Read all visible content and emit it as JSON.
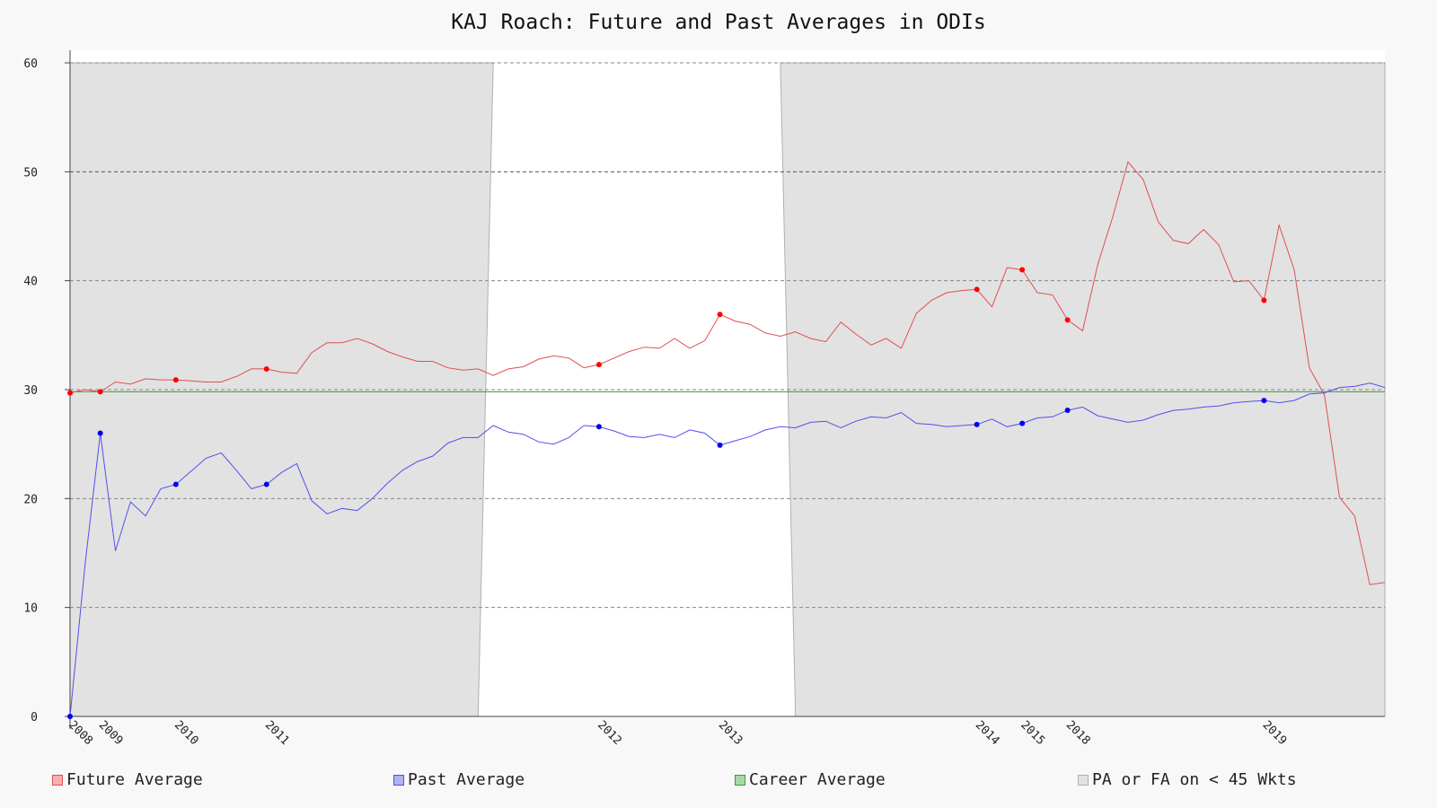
{
  "chart_data": {
    "type": "line",
    "title": "KAJ Roach: Future and Past Averages in ODIs",
    "ylim": [
      0,
      60
    ],
    "yticks": [
      0,
      10,
      20,
      30,
      40,
      50,
      60
    ],
    "grid": true,
    "legend_position": "bottom",
    "x_count": 88,
    "xtick_labels": [
      {
        "index": 0,
        "label": "2008"
      },
      {
        "index": 2,
        "label": "2009"
      },
      {
        "index": 7,
        "label": "2010"
      },
      {
        "index": 13,
        "label": "2011"
      },
      {
        "index": 35,
        "label": "2012"
      },
      {
        "index": 43,
        "label": "2013"
      },
      {
        "index": 60,
        "label": "2014"
      },
      {
        "index": 63,
        "label": "2015"
      },
      {
        "index": 66,
        "label": "2018"
      },
      {
        "index": 79,
        "label": "2019"
      }
    ],
    "series": [
      {
        "name": "Future Average",
        "color": "#e05050",
        "marker_color": "#ff0000",
        "values": [
          29.7,
          30.0,
          29.8,
          30.7,
          30.5,
          31.0,
          30.9,
          30.9,
          30.8,
          30.7,
          30.7,
          31.2,
          31.9,
          31.9,
          31.6,
          31.5,
          33.4,
          34.3,
          34.3,
          34.7,
          34.2,
          33.5,
          33.0,
          32.6,
          32.6,
          32.0,
          31.8,
          31.9,
          31.3,
          31.9,
          32.1,
          32.8,
          33.1,
          32.9,
          32.0,
          32.3,
          32.9,
          33.5,
          33.9,
          33.8,
          34.7,
          33.8,
          34.5,
          36.9,
          36.3,
          36.0,
          35.2,
          34.9,
          35.3,
          34.7,
          34.4,
          36.2,
          35.1,
          34.1,
          34.7,
          33.8,
          37.0,
          38.2,
          38.9,
          39.1,
          39.2,
          37.6,
          41.2,
          41.0,
          38.9,
          38.7,
          36.4,
          35.4,
          41.5,
          45.9,
          50.9,
          49.3,
          45.4,
          43.7,
          43.4,
          44.7,
          43.3,
          39.9,
          40.0,
          38.2,
          45.1,
          41.0,
          32.0,
          29.5,
          20.1,
          18.4,
          12.1,
          12.3
        ],
        "marked_indices": [
          0,
          2,
          7,
          13,
          35,
          43,
          60,
          63,
          66,
          79
        ]
      },
      {
        "name": "Past Average",
        "color": "#5050ee",
        "marker_color": "#0000ee",
        "values": [
          0.0,
          14.0,
          26.0,
          15.2,
          19.7,
          18.4,
          20.9,
          21.3,
          22.5,
          23.7,
          24.2,
          22.6,
          20.9,
          21.3,
          22.4,
          23.2,
          19.8,
          18.6,
          19.1,
          18.9,
          20.0,
          21.4,
          22.6,
          23.4,
          23.9,
          25.1,
          25.6,
          25.6,
          26.7,
          26.1,
          25.9,
          25.2,
          25.0,
          25.6,
          26.7,
          26.6,
          26.2,
          25.7,
          25.6,
          25.9,
          25.6,
          26.3,
          26.0,
          24.9,
          25.3,
          25.7,
          26.3,
          26.6,
          26.5,
          27.0,
          27.1,
          26.5,
          27.1,
          27.5,
          27.4,
          27.9,
          26.9,
          26.8,
          26.6,
          26.7,
          26.8,
          27.3,
          26.6,
          26.9,
          27.4,
          27.5,
          28.1,
          28.4,
          27.6,
          27.3,
          27.0,
          27.2,
          27.7,
          28.1,
          28.2,
          28.4,
          28.5,
          28.8,
          28.9,
          29.0,
          28.8,
          29.0,
          29.6,
          29.7,
          30.2,
          30.3,
          30.6,
          30.2
        ],
        "marked_indices": [
          0,
          2,
          7,
          13,
          35,
          43,
          60,
          63,
          66,
          79
        ]
      },
      {
        "name": "Career Average",
        "color": "#3a9a3a",
        "constant": 29.8
      }
    ],
    "shaded": {
      "name": "PA or FA on < 45 Wkts",
      "color": "#e2e2e2",
      "edge_color": "#b0b0b0",
      "regions": [
        {
          "from": 0,
          "to": 28,
          "bottom_to": 27
        },
        {
          "from": 47,
          "to": 87,
          "bottom_from": 48
        }
      ]
    },
    "legend": [
      {
        "label": "Future Average",
        "fill": "#f4b0b0",
        "border": "#e05050"
      },
      {
        "label": "Past Average",
        "fill": "#b0b0f4",
        "border": "#5050ee"
      },
      {
        "label": "Career Average",
        "fill": "#a8d8a8",
        "border": "#3a9a3a"
      },
      {
        "label": "PA or FA on < 45 Wkts",
        "fill": "#e2e2e2",
        "border": "#b0b0b0"
      }
    ]
  }
}
